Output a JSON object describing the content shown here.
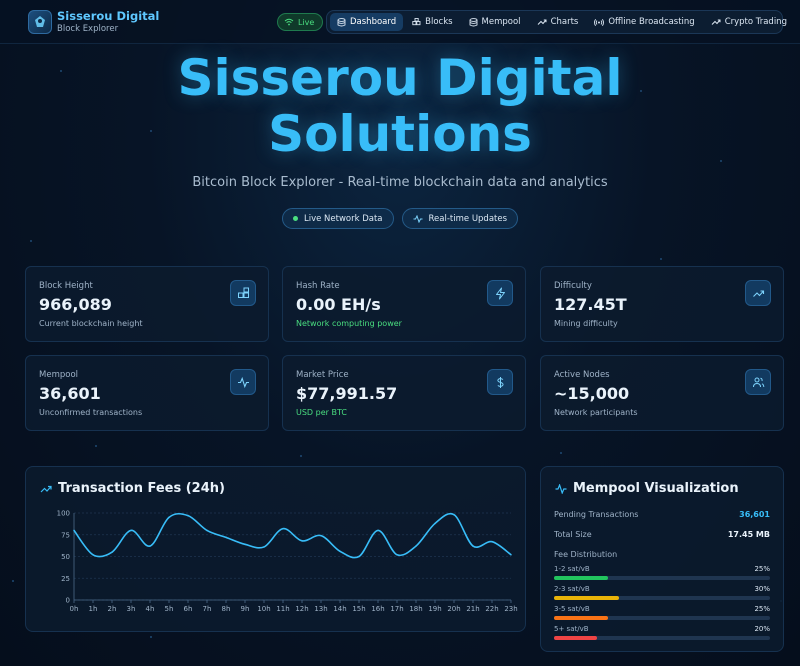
{
  "header": {
    "brand_title": "Sisserou Digital",
    "brand_sub": "Block Explorer",
    "live_label": "Live",
    "nav": [
      {
        "label": "Dashboard",
        "icon": "database-icon",
        "active": true
      },
      {
        "label": "Blocks",
        "icon": "blocks-icon",
        "active": false
      },
      {
        "label": "Mempool",
        "icon": "database-icon",
        "active": false
      },
      {
        "label": "Charts",
        "icon": "trend-icon",
        "active": false
      },
      {
        "label": "Offline Broadcasting",
        "icon": "broadcast-icon",
        "active": false
      },
      {
        "label": "Crypto Trading",
        "icon": "trend-icon",
        "active": false
      }
    ]
  },
  "hero": {
    "title_line1": "Sisserou Digital",
    "title_line2": "Solutions",
    "subtitle": "Bitcoin Block Explorer - Real-time blockchain data and analytics",
    "badge_live": "Live Network Data",
    "badge_updates": "Real-time Updates"
  },
  "stats": [
    {
      "label": "Block Height",
      "value": "966,089",
      "sub": "Current blockchain height",
      "icon": "blocks-icon"
    },
    {
      "label": "Hash Rate",
      "value": "0.00 EH/s",
      "sub": "Network computing power",
      "icon": "lightning-icon"
    },
    {
      "label": "Difficulty",
      "value": "127.45T",
      "sub": "Mining difficulty",
      "icon": "trend-icon"
    },
    {
      "label": "Mempool",
      "value": "36,601",
      "sub": "Unconfirmed transactions",
      "icon": "activity-icon"
    },
    {
      "label": "Market Price",
      "value": "$77,991.57",
      "sub": "USD per BTC",
      "icon": "dollar-icon"
    },
    {
      "label": "Active Nodes",
      "value": "~15,000",
      "sub": "Network participants",
      "icon": "users-icon"
    }
  ],
  "fees_panel": {
    "title": "Transaction Fees (24h)"
  },
  "chart_data": {
    "type": "line",
    "title": "Transaction Fees (24h)",
    "x": [
      "0h",
      "1h",
      "2h",
      "3h",
      "4h",
      "5h",
      "6h",
      "7h",
      "8h",
      "9h",
      "10h",
      "11h",
      "12h",
      "13h",
      "14h",
      "15h",
      "16h",
      "17h",
      "18h",
      "19h",
      "20h",
      "21h",
      "22h",
      "23h"
    ],
    "values": [
      80,
      52,
      55,
      80,
      62,
      95,
      97,
      80,
      72,
      64,
      61,
      82,
      68,
      74,
      56,
      50,
      80,
      52,
      62,
      88,
      98,
      62,
      67,
      52
    ],
    "y_ticks": [
      0,
      25,
      50,
      75,
      100
    ],
    "ylim": [
      0,
      100
    ],
    "grid": true,
    "color": "#38bdf8"
  },
  "mempool_panel": {
    "title": "Mempool Visualization",
    "pending_label": "Pending Transactions",
    "pending_value": "36,601",
    "size_label": "Total Size",
    "size_value": "17.45 MB",
    "fee_dist_label": "Fee Distribution",
    "fees": [
      {
        "label": "1-2 sat/vB",
        "pct": "25%",
        "fraction": 0.25,
        "color": "#22c55e"
      },
      {
        "label": "2-3 sat/vB",
        "pct": "30%",
        "fraction": 0.3,
        "color": "#eab308"
      },
      {
        "label": "3-5 sat/vB",
        "pct": "25%",
        "fraction": 0.25,
        "color": "#f97316"
      },
      {
        "label": "5+ sat/vB",
        "pct": "20%",
        "fraction": 0.2,
        "color": "#ef4444"
      }
    ]
  }
}
